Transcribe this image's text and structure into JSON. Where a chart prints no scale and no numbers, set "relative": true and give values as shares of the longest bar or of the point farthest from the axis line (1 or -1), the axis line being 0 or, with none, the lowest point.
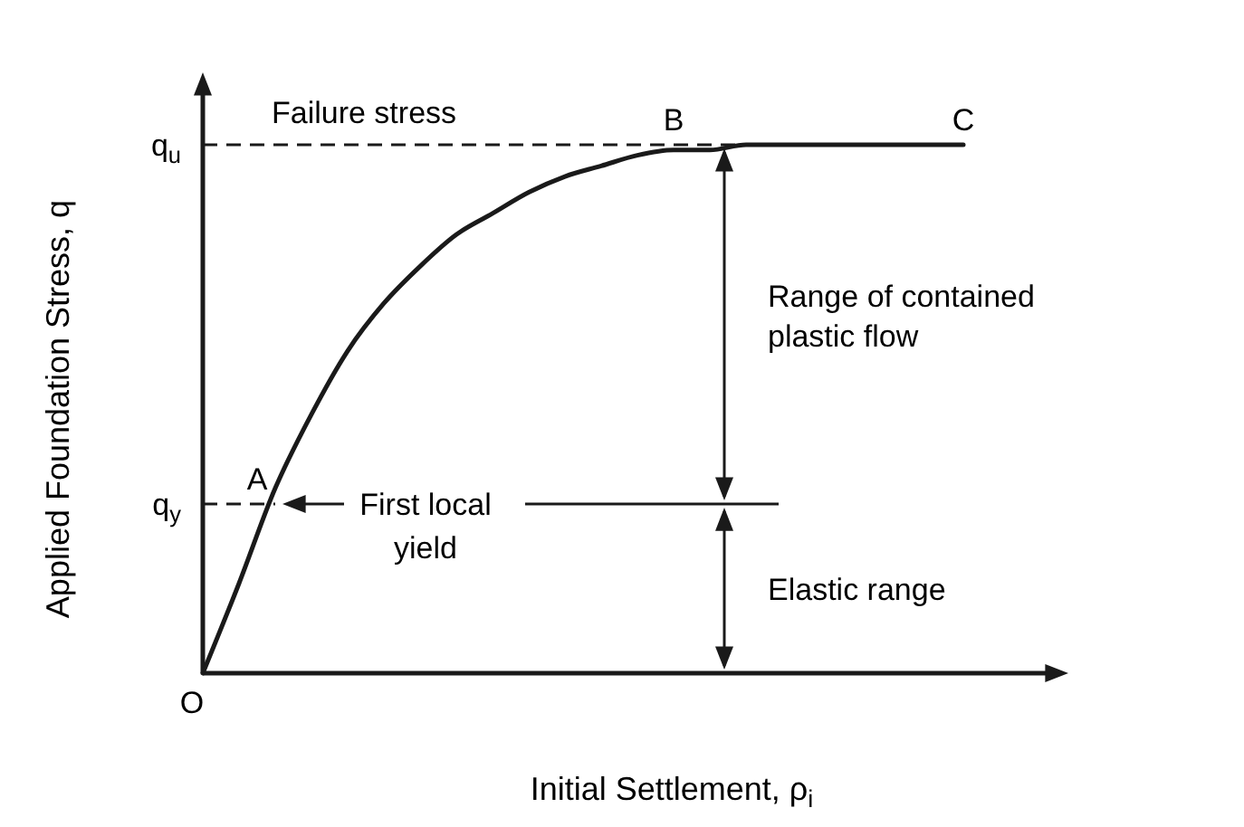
{
  "chart_data": {
    "type": "line",
    "relative": true,
    "xlabel": "Initial Settlement, ρ$_{i}$",
    "ylabel": "Applied Foundation Stress, q",
    "categories": [
      null,
      null,
      null,
      null,
      null,
      null,
      null,
      null,
      null,
      null,
      null,
      null,
      null,
      null,
      null,
      null,
      null,
      null,
      null,
      null,
      null,
      null
    ],
    "series": [
      {
        "color": "#1a1a1a",
        "values": [
          0,
          0.17,
          0.35,
          0.49,
          0.61,
          0.7,
          0.77,
          0.83,
          0.87,
          0.91,
          0.94,
          0.96,
          0.98,
          0.99,
          0.99,
          1,
          1,
          1,
          1,
          1,
          1,
          1
        ]
      }
    ],
    "ref_lines": [
      {
        "axis": "y",
        "value": 1,
        "label": "q$_{u}$",
        "line_style": "dashed"
      },
      {
        "axis": "y",
        "value": 0.32,
        "label": "q$_{y}$",
        "line_style": "dashed"
      }
    ],
    "line_style": "solid",
    "annotations": [
      "O",
      "A",
      "B",
      "C",
      "Failure stress",
      "First local yield",
      "Range of contained plastic flow",
      "Elastic range"
    ]
  }
}
